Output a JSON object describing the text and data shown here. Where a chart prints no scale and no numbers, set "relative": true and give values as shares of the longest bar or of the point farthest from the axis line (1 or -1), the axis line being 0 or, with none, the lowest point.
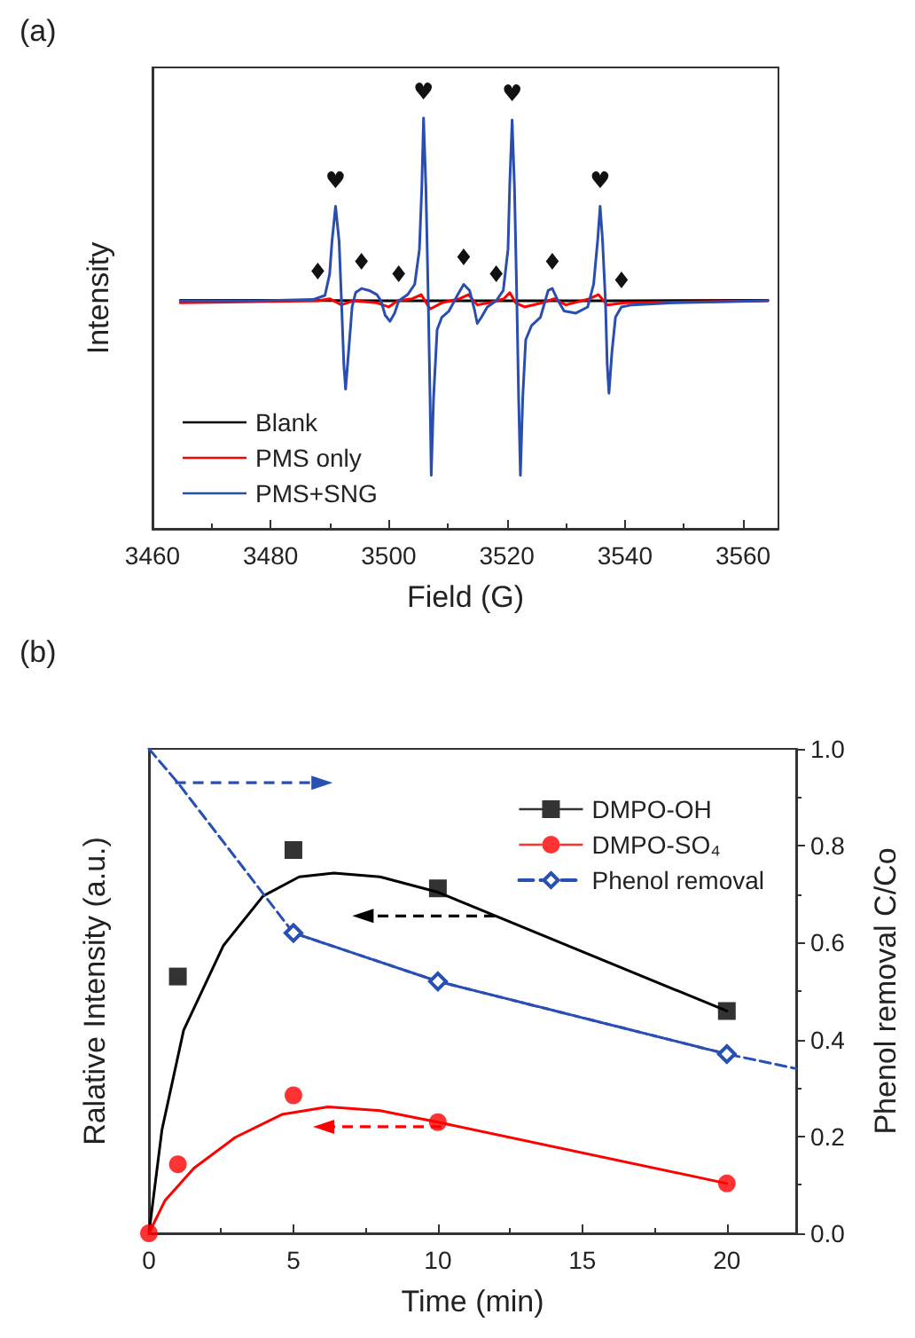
{
  "chart_data": [
    {
      "type": "line",
      "title": "(a)",
      "xlabel": "Field (G)",
      "ylabel": "Intensity",
      "relative": true,
      "xlim": [
        3460,
        3566
      ],
      "xticks": [
        3460,
        3480,
        3500,
        3520,
        3540,
        3560
      ],
      "grid": false,
      "legend": "bottom left",
      "marker": "none",
      "line_style": "solid",
      "annotations": [
        {
          "text": "♥",
          "x": 3491,
          "y": 0.785
        },
        {
          "text": "♥",
          "x": 3505.9,
          "y": 1.0
        },
        {
          "text": "♥",
          "x": 3520.9,
          "y": 0.995
        },
        {
          "text": "♥",
          "x": 3535.8,
          "y": 0.785
        },
        {
          "text": "♦",
          "x": 3488,
          "y": 0.562
        },
        {
          "text": "♦",
          "x": 3495.4,
          "y": 0.585
        },
        {
          "text": "♦",
          "x": 3501.7,
          "y": 0.555
        },
        {
          "text": "♦",
          "x": 3512.7,
          "y": 0.595
        },
        {
          "text": "♦",
          "x": 3518.2,
          "y": 0.555
        },
        {
          "text": "♦",
          "x": 3527.7,
          "y": 0.585
        },
        {
          "text": "♦",
          "x": 3539.4,
          "y": 0.54
        }
      ],
      "series": [
        {
          "name": "Blank",
          "color": "#000000",
          "x": [
            3464.7,
            3480,
            3500,
            3520,
            3540,
            3564.2
          ],
          "values": [
            0.556,
            0.556,
            0.555,
            0.555,
            0.555,
            0.556
          ]
        },
        {
          "name": "PMS only",
          "color": "#ff0000",
          "x": [
            3464.7,
            3488,
            3490,
            3492,
            3494,
            3498,
            3500,
            3501.5,
            3504,
            3505.5,
            3507,
            3509,
            3512,
            3513.5,
            3515,
            3517,
            3519.5,
            3520.5,
            3521.5,
            3523,
            3526,
            3528,
            3530,
            3534,
            3535.5,
            3537,
            3540,
            3564.2
          ],
          "values": [
            0.55,
            0.555,
            0.56,
            0.545,
            0.555,
            0.55,
            0.54,
            0.555,
            0.56,
            0.57,
            0.535,
            0.55,
            0.56,
            0.57,
            0.545,
            0.55,
            0.56,
            0.575,
            0.55,
            0.54,
            0.55,
            0.56,
            0.545,
            0.56,
            0.57,
            0.545,
            0.55,
            0.555
          ]
        },
        {
          "name": "PMS+SNG",
          "color": "#2a4db0",
          "x": [
            3464.7,
            3478.2,
            3487.2,
            3489.2,
            3490,
            3490.4,
            3491,
            3491.6,
            3492,
            3492.4,
            3492.7,
            3493.2,
            3493.8,
            3494.4,
            3495.4,
            3496.7,
            3498,
            3498.7,
            3499.4,
            3500.2,
            3501,
            3501.7,
            3503.2,
            3504.4,
            3505.2,
            3505.6,
            3505.9,
            3506.3,
            3506.7,
            3507,
            3507.2,
            3507.6,
            3508.2,
            3509,
            3510.2,
            3511.7,
            3512.7,
            3513.7,
            3514.5,
            3515,
            3515.7,
            3516.7,
            3518.2,
            3519.4,
            3520.2,
            3520.5,
            3520.9,
            3521.3,
            3521.7,
            3522,
            3522.3,
            3522.7,
            3523.2,
            3524.2,
            3525.7,
            3527,
            3527.7,
            3528.5,
            3529.7,
            3531.7,
            3533.7,
            3534.7,
            3535.4,
            3535.8,
            3536.2,
            3536.7,
            3537,
            3537.3,
            3537.8,
            3538.4,
            3539.4,
            3541.2,
            3548.2,
            3564.2
          ],
          "values": [
            0.555,
            0.555,
            0.558,
            0.568,
            0.62,
            0.7,
            0.785,
            0.7,
            0.555,
            0.4,
            0.34,
            0.43,
            0.54,
            0.575,
            0.585,
            0.58,
            0.57,
            0.555,
            0.52,
            0.505,
            0.525,
            0.555,
            0.57,
            0.595,
            0.68,
            0.83,
            1.0,
            0.83,
            0.555,
            0.32,
            0.13,
            0.32,
            0.485,
            0.515,
            0.53,
            0.57,
            0.595,
            0.58,
            0.535,
            0.5,
            0.515,
            0.54,
            0.555,
            0.58,
            0.68,
            0.84,
            0.995,
            0.83,
            0.555,
            0.32,
            0.13,
            0.32,
            0.46,
            0.495,
            0.515,
            0.58,
            0.585,
            0.56,
            0.53,
            0.525,
            0.54,
            0.595,
            0.705,
            0.785,
            0.705,
            0.555,
            0.4,
            0.33,
            0.43,
            0.515,
            0.54,
            0.545,
            0.55,
            0.555
          ]
        }
      ]
    },
    {
      "type": "line",
      "title": "(b)",
      "xlabel": "Time (min)",
      "ylabel": "Ralative Intensity (a.u.)",
      "y2label": "Phenol removal C/Co",
      "relative": true,
      "xlim": [
        0,
        22.4
      ],
      "xticks": [
        0,
        5,
        10,
        15,
        20
      ],
      "y2lim": [
        0,
        1
      ],
      "y2ticks": [
        {
          "value": 0,
          "label": "0.0"
        },
        {
          "value": 0.2,
          "label": "0.2"
        },
        {
          "value": 0.4,
          "label": "0.4"
        },
        {
          "value": 0.6,
          "label": "0.6"
        },
        {
          "value": 0.8,
          "label": "0.8"
        },
        {
          "value": 1,
          "label": "1.0"
        }
      ],
      "grid": false,
      "legend": "top right",
      "line_style": "solid",
      "series": [
        {
          "name": "DMPO-OH",
          "type": "scatter",
          "marker": "square",
          "color": "#000000",
          "x": [
            1,
            5,
            10,
            20
          ],
          "values": [
            0.67,
            1,
            0.9,
            0.58
          ]
        },
        {
          "marker": "none",
          "color": "#000000",
          "x": [
            0,
            0.45,
            1.2,
            2.57,
            3.95,
            5.2,
            6.4,
            8,
            10,
            20
          ],
          "values": [
            0,
            0.27,
            0.53,
            0.75,
            0.88,
            0.93,
            0.94,
            0.93,
            0.89,
            0.58
          ]
        },
        {
          "name": "DMPO-SO₄",
          "type": "scatter",
          "marker": "circle",
          "color": "#ff0000",
          "x": [
            0,
            1,
            5,
            10,
            20
          ],
          "values": [
            0,
            0.18,
            0.36,
            0.29,
            0.13
          ]
        },
        {
          "marker": "none",
          "color": "#ff0000",
          "x": [
            0,
            0.55,
            1.56,
            2.98,
            4.6,
            6.2,
            8,
            10,
            20
          ],
          "values": [
            0,
            0.085,
            0.17,
            0.25,
            0.31,
            0.33,
            0.32,
            0.29,
            0.13
          ]
        },
        {
          "name": "Phenol removal",
          "axis": "y2",
          "marker": "diamond",
          "line_style": "dashed",
          "color": "#2850b4",
          "x": [
            5,
            10,
            20
          ],
          "values": [
            0.62,
            0.52,
            0.37
          ]
        },
        {
          "axis": "y2",
          "marker": "none",
          "line_style": "dashed",
          "color": "#2850b4",
          "x": [
            0,
            1,
            5,
            10,
            20,
            22.4
          ],
          "values": [
            1.0,
            0.93,
            0.62,
            0.52,
            0.37,
            0.34
          ]
        }
      ]
    }
  ]
}
